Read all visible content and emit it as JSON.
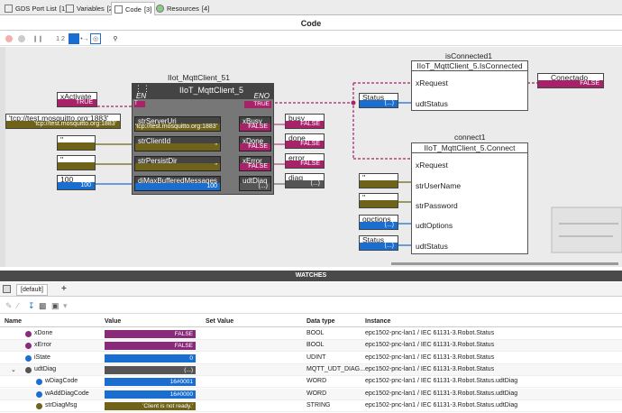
{
  "tabs": [
    {
      "label": "GDS Port List",
      "count": "[1]"
    },
    {
      "label": "Variables",
      "count": "[2]"
    },
    {
      "label": "Code",
      "count": "[3]"
    },
    {
      "label": "Resources",
      "count": "[4]"
    }
  ],
  "code_title": "Code",
  "toolbar": {
    "step_label": "1 2"
  },
  "canvas": {
    "fb_instance_label": "IIot_MqttClient_51",
    "fb": {
      "type": "IIoT_MqttClient_5",
      "en": "EN",
      "en_value": "T",
      "eno": "ENO",
      "eno_value": "TRUE",
      "inputs": [
        {
          "name": "strServerUri",
          "value": "'tcp://test.mosquitto.org:1883'"
        },
        {
          "name": "strClientId",
          "value": "''"
        },
        {
          "name": "strPersistDir",
          "value": "''"
        },
        {
          "name": "diMaxBufferedMessages",
          "value": "100"
        }
      ],
      "outputs": [
        {
          "name": "xBusy",
          "value": "FALSE"
        },
        {
          "name": "xDone",
          "value": "FALSE"
        },
        {
          "name": "xError",
          "value": "FALSE"
        },
        {
          "name": "udtDiag",
          "value": "(...)"
        }
      ]
    },
    "in_vars": [
      {
        "name": "xActivate",
        "value": "TRUE"
      },
      {
        "name": "'tcp://test.mosquitto.org:1883'",
        "value": "'tcp://test.mosquitto.org:1883'"
      },
      {
        "name": "''",
        "value": ""
      },
      {
        "name": "''",
        "value": ""
      },
      {
        "name": "100",
        "value": "100"
      }
    ],
    "out_vars": [
      {
        "name": "busy",
        "value": "FALSE"
      },
      {
        "name": "done",
        "value": "FALSE"
      },
      {
        "name": "error",
        "value": "FALSE"
      },
      {
        "name": "diag",
        "value": "(...)"
      }
    ],
    "isConnected": {
      "instance": "isConnected1",
      "type": "IIoT_MqttClient_5.IsConnected",
      "pins": [
        "xRequest",
        "udtStatus"
      ],
      "status_var": {
        "name": "Status",
        "value": "(...)"
      },
      "out_var": {
        "name": "Conectado",
        "value": "FALSE"
      }
    },
    "connect": {
      "instance": "connect1",
      "type": "IIoT_MqttClient_5.Connect",
      "pins": [
        "xRequest",
        "strUserName",
        "strPassword",
        "udtOptions",
        "udtStatus"
      ],
      "vars": [
        {
          "name": "''",
          "value": ""
        },
        {
          "name": "''",
          "value": ""
        },
        {
          "name": "opctions",
          "value": "(...)"
        },
        {
          "name": "Status",
          "value": "(...)"
        }
      ]
    }
  },
  "watches": {
    "header": "WATCHES",
    "tab": "[default]",
    "add": "+",
    "columns": [
      "Name",
      "Value",
      "Set Value",
      "Data type",
      "Instance"
    ],
    "rows": [
      {
        "name": "xDone",
        "value": "FALSE",
        "type": "BOOL",
        "instance": "epc1502-pnc-lan1 / IEC 61131-3.Robot.Status",
        "color": "#8a2a7a",
        "indent": 0
      },
      {
        "name": "xError",
        "value": "FALSE",
        "type": "BOOL",
        "instance": "epc1502-pnc-lan1 / IEC 61131-3.Robot.Status",
        "color": "#8a2a7a",
        "indent": 0
      },
      {
        "name": "iState",
        "value": "0",
        "type": "UDINT",
        "instance": "epc1502-pnc-lan1 / IEC 61131-3.Robot.Status",
        "color": "#1a6ed0",
        "indent": 0
      },
      {
        "name": "udtDiag",
        "value": "(...)",
        "type": "MQTT_UDT_DIAG...",
        "instance": "epc1502-pnc-lan1 / IEC 61131-3.Robot.Status",
        "color": "#555555",
        "indent": 0
      },
      {
        "name": "wDiagCode",
        "value": "16#0001",
        "type": "WORD",
        "instance": "epc1502-pnc-lan1 / IEC 61131-3.Robot.Status.udtDiag",
        "color": "#1a6ed0",
        "indent": 1
      },
      {
        "name": "wAddDiagCode",
        "value": "16#0000",
        "type": "WORD",
        "instance": "epc1502-pnc-lan1 / IEC 61131-3.Robot.Status.udtDiag",
        "color": "#1a6ed0",
        "indent": 1
      },
      {
        "name": "strDiagMsg",
        "value": "'Client is not ready.'",
        "type": "STRING",
        "instance": "epc1502-pnc-lan1 / IEC 61131-3.Robot.Status.udtDiag",
        "color": "#6e6318",
        "indent": 1
      }
    ]
  }
}
